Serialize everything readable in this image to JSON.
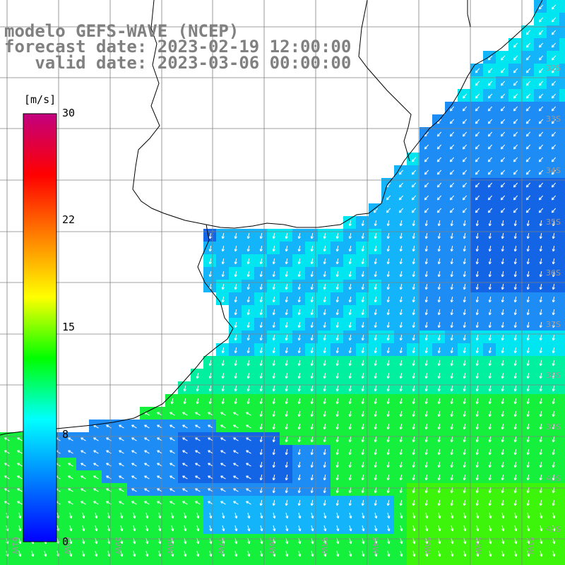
{
  "title": {
    "line1": "modelo GEFS-WAVE (NCEP)",
    "line2": "forecast date: 2023-02-19 12:00:00",
    "line3": "   valid date: 2023-03-06 00:00:00"
  },
  "colorbar": {
    "unit": "[m/s]",
    "ticks": [
      "30",
      "22",
      "15",
      "8",
      "0"
    ],
    "colors": [
      "#0000ff",
      "#007fff",
      "#00ffff",
      "#00ff00",
      "#ffff00",
      "#ff7f00",
      "#ff0000",
      "#c2007f"
    ]
  },
  "map": {
    "lat_labels": [
      "32S",
      "33S",
      "34S",
      "35S",
      "36S",
      "37S",
      "38S",
      "39S",
      "40S",
      "41S"
    ],
    "lon_labels": [
      "61W",
      "60W",
      "59W",
      "58W",
      "57W",
      "56W",
      "55W",
      "54W",
      "53W",
      "52W",
      "51W"
    ],
    "field_colors": {
      "dark_blue": "#1464e6",
      "mid_blue": "#1e8cf5",
      "azure": "#14b4fa",
      "cyan": "#00e6f0",
      "aqua_green": "#00f0a0",
      "green": "#14f03c",
      "lime": "#3cf50a"
    },
    "grid_color": "#808080",
    "coast_color": "#000000",
    "arrow_color": "#ffffff"
  }
}
